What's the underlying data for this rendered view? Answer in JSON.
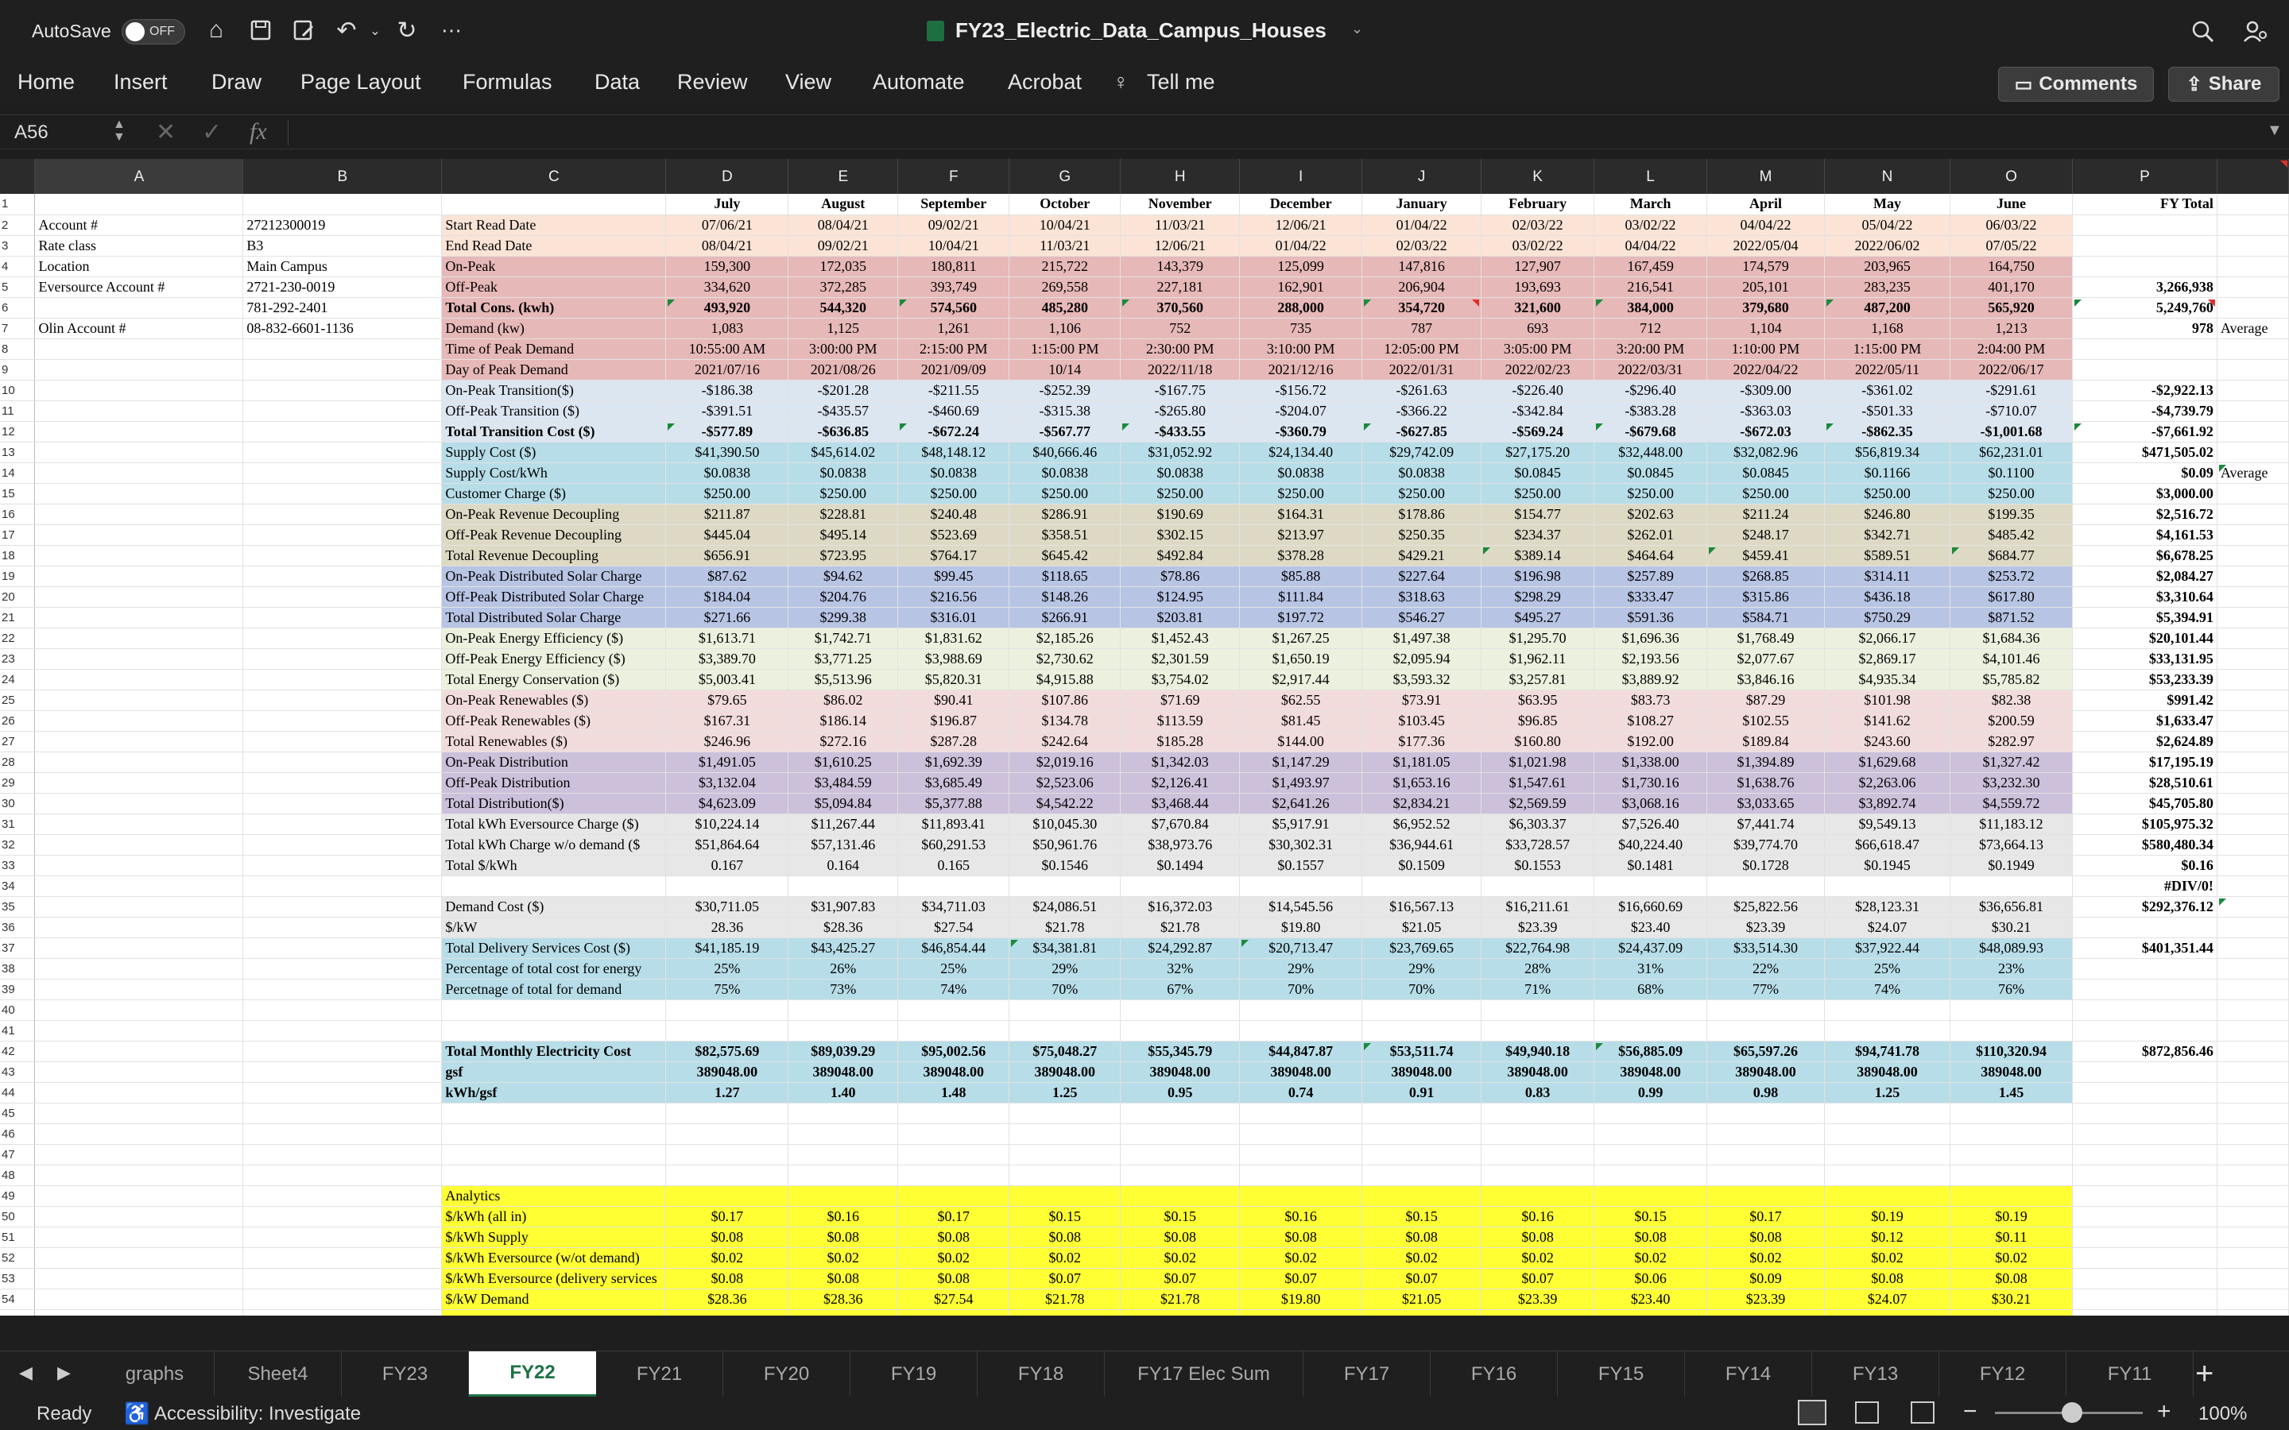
{
  "title": {
    "autosave": "AutoSave",
    "toggle": "OFF",
    "filename": "FY23_Electric_Data_Campus_Houses"
  },
  "ribbon": {
    "tabs": [
      "Home",
      "Insert",
      "Draw",
      "Page Layout",
      "Formulas",
      "Data",
      "Review",
      "View",
      "Automate",
      "Acrobat"
    ],
    "tellme": "Tell me",
    "comments": "Comments",
    "share": "Share"
  },
  "formula": {
    "namebox": "A56",
    "fx": "fx",
    "value": ""
  },
  "columns": [
    "A",
    "B",
    "C",
    "D",
    "E",
    "F",
    "G",
    "H",
    "I",
    "J",
    "K",
    "L",
    "M",
    "N",
    "O",
    "P"
  ],
  "rows": [
    [
      "",
      "",
      "",
      "July",
      "August",
      "September",
      "October",
      "November",
      "December",
      "January",
      "February",
      "March",
      "April",
      "May",
      "June",
      "FY Total",
      ""
    ],
    [
      "Account #",
      "27212300019",
      "Start Read Date",
      "07/06/21",
      "08/04/21",
      "09/02/21",
      "10/04/21",
      "11/03/21",
      "12/06/21",
      "01/04/22",
      "02/03/22",
      "03/02/22",
      "04/04/22",
      "05/04/22",
      "06/03/22",
      "",
      ""
    ],
    [
      "Rate class",
      "B3",
      "End Read Date",
      "08/04/21",
      "09/02/21",
      "10/04/21",
      "11/03/21",
      "12/06/21",
      "01/04/22",
      "02/03/22",
      "03/02/22",
      "04/04/22",
      "2022/05/04",
      "2022/06/02",
      "07/05/22",
      "",
      ""
    ],
    [
      "Location",
      "Main Campus",
      "On-Peak",
      "159,300",
      "172,035",
      "180,811",
      "215,722",
      "143,379",
      "125,099",
      "147,816",
      "127,907",
      "167,459",
      "174,579",
      "203,965",
      "164,750",
      "",
      ""
    ],
    [
      "Eversource Account #",
      "2721-230-0019",
      "Off-Peak",
      "334,620",
      "372,285",
      "393,749",
      "269,558",
      "227,181",
      "162,901",
      "206,904",
      "193,693",
      "216,541",
      "205,101",
      "283,235",
      "401,170",
      "3,266,938",
      ""
    ],
    [
      "",
      "781-292-2401",
      "Total Cons. (kwh)",
      "493,920",
      "544,320",
      "574,560",
      "485,280",
      "370,560",
      "288,000",
      "354,720",
      "321,600",
      "384,000",
      "379,680",
      "487,200",
      "565,920",
      "5,249,760",
      ""
    ],
    [
      "Olin Account #",
      "08-832-6601-1136",
      "Demand (kw)",
      "1,083",
      "1,125",
      "1,261",
      "1,106",
      "752",
      "735",
      "787",
      "693",
      "712",
      "1,104",
      "1,168",
      "1,213",
      "978",
      "Average"
    ],
    [
      "",
      "",
      "Time of Peak Demand",
      "10:55:00 AM",
      "3:00:00 PM",
      "2:15:00 PM",
      "1:15:00 PM",
      "2:30:00 PM",
      "3:10:00 PM",
      "12:05:00 PM",
      "3:05:00 PM",
      "3:20:00 PM",
      "1:10:00 PM",
      "1:15:00 PM",
      "2:04:00 PM",
      "",
      ""
    ],
    [
      "",
      "",
      "Day of Peak Demand",
      "2021/07/16",
      "2021/08/26",
      "2021/09/09",
      "10/14",
      "2022/11/18",
      "2021/12/16",
      "2022/01/31",
      "2022/02/23",
      "2022/03/31",
      "2022/04/22",
      "2022/05/11",
      "2022/06/17",
      "",
      ""
    ],
    [
      "",
      "",
      "On-Peak Transition($)",
      "-$186.38",
      "-$201.28",
      "-$211.55",
      "-$252.39",
      "-$167.75",
      "-$156.72",
      "-$261.63",
      "-$226.40",
      "-$296.40",
      "-$309.00",
      "-$361.02",
      "-$291.61",
      "-$2,922.13",
      ""
    ],
    [
      "",
      "",
      "Off-Peak Transition ($)",
      "-$391.51",
      "-$435.57",
      "-$460.69",
      "-$315.38",
      "-$265.80",
      "-$204.07",
      "-$366.22",
      "-$342.84",
      "-$383.28",
      "-$363.03",
      "-$501.33",
      "-$710.07",
      "-$4,739.79",
      ""
    ],
    [
      "",
      "",
      "Total Transition Cost ($)",
      "-$577.89",
      "-$636.85",
      "-$672.24",
      "-$567.77",
      "-$433.55",
      "-$360.79",
      "-$627.85",
      "-$569.24",
      "-$679.68",
      "-$672.03",
      "-$862.35",
      "-$1,001.68",
      "-$7,661.92",
      ""
    ],
    [
      "",
      "",
      "Supply Cost ($)",
      "$41,390.50",
      "$45,614.02",
      "$48,148.12",
      "$40,666.46",
      "$31,052.92",
      "$24,134.40",
      "$29,742.09",
      "$27,175.20",
      "$32,448.00",
      "$32,082.96",
      "$56,819.34",
      "$62,231.01",
      "$471,505.02",
      ""
    ],
    [
      "",
      "",
      "Supply Cost/kWh",
      "$0.0838",
      "$0.0838",
      "$0.0838",
      "$0.0838",
      "$0.0838",
      "$0.0838",
      "$0.0838",
      "$0.0845",
      "$0.0845",
      "$0.0845",
      "$0.1166",
      "$0.1100",
      "$0.09",
      "Average"
    ],
    [
      "",
      "",
      "Customer Charge ($)",
      "$250.00",
      "$250.00",
      "$250.00",
      "$250.00",
      "$250.00",
      "$250.00",
      "$250.00",
      "$250.00",
      "$250.00",
      "$250.00",
      "$250.00",
      "$250.00",
      "$3,000.00",
      ""
    ],
    [
      "",
      "",
      "On-Peak Revenue Decoupling",
      "$211.87",
      "$228.81",
      "$240.48",
      "$286.91",
      "$190.69",
      "$164.31",
      "$178.86",
      "$154.77",
      "$202.63",
      "$211.24",
      "$246.80",
      "$199.35",
      "$2,516.72",
      ""
    ],
    [
      "",
      "",
      "Off-Peak Revenue Decoupling",
      "$445.04",
      "$495.14",
      "$523.69",
      "$358.51",
      "$302.15",
      "$213.97",
      "$250.35",
      "$234.37",
      "$262.01",
      "$248.17",
      "$342.71",
      "$485.42",
      "$4,161.53",
      ""
    ],
    [
      "",
      "",
      "Total Revenue Decoupling",
      "$656.91",
      "$723.95",
      "$764.17",
      "$645.42",
      "$492.84",
      "$378.28",
      "$429.21",
      "$389.14",
      "$464.64",
      "$459.41",
      "$589.51",
      "$684.77",
      "$6,678.25",
      ""
    ],
    [
      "",
      "",
      "On-Peak Distributed Solar Charge",
      "$87.62",
      "$94.62",
      "$99.45",
      "$118.65",
      "$78.86",
      "$85.88",
      "$227.64",
      "$196.98",
      "$257.89",
      "$268.85",
      "$314.11",
      "$253.72",
      "$2,084.27",
      ""
    ],
    [
      "",
      "",
      "Off-Peak Distributed Solar Charge",
      "$184.04",
      "$204.76",
      "$216.56",
      "$148.26",
      "$124.95",
      "$111.84",
      "$318.63",
      "$298.29",
      "$333.47",
      "$315.86",
      "$436.18",
      "$617.80",
      "$3,310.64",
      ""
    ],
    [
      "",
      "",
      "Total Distributed Solar Charge",
      "$271.66",
      "$299.38",
      "$316.01",
      "$266.91",
      "$203.81",
      "$197.72",
      "$546.27",
      "$495.27",
      "$591.36",
      "$584.71",
      "$750.29",
      "$871.52",
      "$5,394.91",
      ""
    ],
    [
      "",
      "",
      "On-Peak Energy Efficiency ($)",
      "$1,613.71",
      "$1,742.71",
      "$1,831.62",
      "$2,185.26",
      "$1,452.43",
      "$1,267.25",
      "$1,497.38",
      "$1,295.70",
      "$1,696.36",
      "$1,768.49",
      "$2,066.17",
      "$1,684.36",
      "$20,101.44",
      ""
    ],
    [
      "",
      "",
      "Off-Peak Energy Efficiency ($)",
      "$3,389.70",
      "$3,771.25",
      "$3,988.69",
      "$2,730.62",
      "$2,301.59",
      "$1,650.19",
      "$2,095.94",
      "$1,962.11",
      "$2,193.56",
      "$2,077.67",
      "$2,869.17",
      "$4,101.46",
      "$33,131.95",
      ""
    ],
    [
      "",
      "",
      "Total Energy Conservation ($)",
      "$5,003.41",
      "$5,513.96",
      "$5,820.31",
      "$4,915.88",
      "$3,754.02",
      "$2,917.44",
      "$3,593.32",
      "$3,257.81",
      "$3,889.92",
      "$3,846.16",
      "$4,935.34",
      "$5,785.82",
      "$53,233.39",
      ""
    ],
    [
      "",
      "",
      "On-Peak Renewables ($)",
      "$79.65",
      "$86.02",
      "$90.41",
      "$107.86",
      "$71.69",
      "$62.55",
      "$73.91",
      "$63.95",
      "$83.73",
      "$87.29",
      "$101.98",
      "$82.38",
      "$991.42",
      ""
    ],
    [
      "",
      "",
      "Off-Peak Renewables ($)",
      "$167.31",
      "$186.14",
      "$196.87",
      "$134.78",
      "$113.59",
      "$81.45",
      "$103.45",
      "$96.85",
      "$108.27",
      "$102.55",
      "$141.62",
      "$200.59",
      "$1,633.47",
      ""
    ],
    [
      "",
      "",
      "Total Renewables ($)",
      "$246.96",
      "$272.16",
      "$287.28",
      "$242.64",
      "$185.28",
      "$144.00",
      "$177.36",
      "$160.80",
      "$192.00",
      "$189.84",
      "$243.60",
      "$282.97",
      "$2,624.89",
      ""
    ],
    [
      "",
      "",
      "On-Peak Distribution",
      "$1,491.05",
      "$1,610.25",
      "$1,692.39",
      "$2,019.16",
      "$1,342.03",
      "$1,147.29",
      "$1,181.05",
      "$1,021.98",
      "$1,338.00",
      "$1,394.89",
      "$1,629.68",
      "$1,327.42",
      "$17,195.19",
      ""
    ],
    [
      "",
      "",
      "Off-Peak Distribution",
      "$3,132.04",
      "$3,484.59",
      "$3,685.49",
      "$2,523.06",
      "$2,126.41",
      "$1,493.97",
      "$1,653.16",
      "$1,547.61",
      "$1,730.16",
      "$1,638.76",
      "$2,263.06",
      "$3,232.30",
      "$28,510.61",
      ""
    ],
    [
      "",
      "",
      "Total Distribution($)",
      "$4,623.09",
      "$5,094.84",
      "$5,377.88",
      "$4,542.22",
      "$3,468.44",
      "$2,641.26",
      "$2,834.21",
      "$2,569.59",
      "$3,068.16",
      "$3,033.65",
      "$3,892.74",
      "$4,559.72",
      "$45,705.80",
      ""
    ],
    [
      "",
      "",
      "Total kWh Eversource Charge ($)",
      "$10,224.14",
      "$11,267.44",
      "$11,893.41",
      "$10,045.30",
      "$7,670.84",
      "$5,917.91",
      "$6,952.52",
      "$6,303.37",
      "$7,526.40",
      "$7,441.74",
      "$9,549.13",
      "$11,183.12",
      "$105,975.32",
      ""
    ],
    [
      "",
      "",
      "Total kWh Charge w/o demand  ($",
      "$51,864.64",
      "$57,131.46",
      "$60,291.53",
      "$50,961.76",
      "$38,973.76",
      "$30,302.31",
      "$36,944.61",
      "$33,728.57",
      "$40,224.40",
      "$39,774.70",
      "$66,618.47",
      "$73,664.13",
      "$580,480.34",
      ""
    ],
    [
      "",
      "",
      "Total $/kWh",
      "0.167",
      "0.164",
      "0.165",
      "$0.1546",
      "$0.1494",
      "$0.1557",
      "$0.1509",
      "$0.1553",
      "$0.1481",
      "$0.1728",
      "$0.1945",
      "$0.1949",
      "$0.16",
      ""
    ],
    [
      "",
      "",
      "",
      "",
      "",
      "",
      "",
      "",
      "",
      "",
      "",
      "",
      "",
      "",
      "",
      "#DIV/0!",
      ""
    ],
    [
      "",
      "",
      "Demand Cost ($)",
      "$30,711.05",
      "$31,907.83",
      "$34,711.03",
      "$24,086.51",
      "$16,372.03",
      "$14,545.56",
      "$16,567.13",
      "$16,211.61",
      "$16,660.69",
      "$25,822.56",
      "$28,123.31",
      "$36,656.81",
      "$292,376.12",
      ""
    ],
    [
      "",
      "",
      "$/kW",
      "28.36",
      "$28.36",
      "$27.54",
      "$21.78",
      "$21.78",
      "$19.80",
      "$21.05",
      "$23.39",
      "$23.40",
      "$23.39",
      "$24.07",
      "$30.21",
      "",
      ""
    ],
    [
      "",
      "",
      "Total Delivery Services Cost ($)",
      "$41,185.19",
      "$43,425.27",
      "$46,854.44",
      "$34,381.81",
      "$24,292.87",
      "$20,713.47",
      "$23,769.65",
      "$22,764.98",
      "$24,437.09",
      "$33,514.30",
      "$37,922.44",
      "$48,089.93",
      "$401,351.44",
      ""
    ],
    [
      "",
      "",
      "Percentage of total cost for energy",
      "25%",
      "26%",
      "25%",
      "29%",
      "32%",
      "29%",
      "29%",
      "28%",
      "31%",
      "22%",
      "25%",
      "23%",
      "",
      ""
    ],
    [
      "",
      "",
      "Percetnage of total for demand",
      "75%",
      "73%",
      "74%",
      "70%",
      "67%",
      "70%",
      "70%",
      "71%",
      "68%",
      "77%",
      "74%",
      "76%",
      "",
      ""
    ],
    [
      "",
      "",
      "",
      "",
      "",
      "",
      "",
      "",
      "",
      "",
      "",
      "",
      "",
      "",
      "",
      "",
      ""
    ],
    [
      "",
      "",
      "",
      "",
      "",
      "",
      "",
      "",
      "",
      "",
      "",
      "",
      "",
      "",
      "",
      "",
      ""
    ],
    [
      "",
      "",
      "Total Monthly Electricity Cost",
      "$82,575.69",
      "$89,039.29",
      "$95,002.56",
      "$75,048.27",
      "$55,345.79",
      "$44,847.87",
      "$53,511.74",
      "$49,940.18",
      "$56,885.09",
      "$65,597.26",
      "$94,741.78",
      "$110,320.94",
      "$872,856.46",
      ""
    ],
    [
      "",
      "",
      "gsf",
      "389048.00",
      "389048.00",
      "389048.00",
      "389048.00",
      "389048.00",
      "389048.00",
      "389048.00",
      "389048.00",
      "389048.00",
      "389048.00",
      "389048.00",
      "389048.00",
      "",
      ""
    ],
    [
      "",
      "",
      "kWh/gsf",
      "1.27",
      "1.40",
      "1.48",
      "1.25",
      "0.95",
      "0.74",
      "0.91",
      "0.83",
      "0.99",
      "0.98",
      "1.25",
      "1.45",
      "",
      ""
    ],
    [
      "",
      "",
      "",
      "",
      "",
      "",
      "",
      "",
      "",
      "",
      "",
      "",
      "",
      "",
      "",
      "",
      ""
    ],
    [
      "",
      "",
      "",
      "",
      "",
      "",
      "",
      "",
      "",
      "",
      "",
      "",
      "",
      "",
      "",
      "",
      ""
    ],
    [
      "",
      "",
      "",
      "",
      "",
      "",
      "",
      "",
      "",
      "",
      "",
      "",
      "",
      "",
      "",
      "",
      ""
    ],
    [
      "",
      "",
      "",
      "",
      "",
      "",
      "",
      "",
      "",
      "",
      "",
      "",
      "",
      "",
      "",
      "",
      ""
    ],
    [
      "",
      "",
      "Analytics",
      "",
      "",
      "",
      "",
      "",
      "",
      "",
      "",
      "",
      "",
      "",
      "",
      "",
      ""
    ],
    [
      "",
      "",
      "$/kWh (all in)",
      "$0.17",
      "$0.16",
      "$0.17",
      "$0.15",
      "$0.15",
      "$0.16",
      "$0.15",
      "$0.16",
      "$0.15",
      "$0.17",
      "$0.19",
      "$0.19",
      "",
      ""
    ],
    [
      "",
      "",
      "$/kWh Supply",
      "$0.08",
      "$0.08",
      "$0.08",
      "$0.08",
      "$0.08",
      "$0.08",
      "$0.08",
      "$0.08",
      "$0.08",
      "$0.08",
      "$0.12",
      "$0.11",
      "",
      ""
    ],
    [
      "",
      "",
      "$/kWh Eversource (w/ot demand)",
      "$0.02",
      "$0.02",
      "$0.02",
      "$0.02",
      "$0.02",
      "$0.02",
      "$0.02",
      "$0.02",
      "$0.02",
      "$0.02",
      "$0.02",
      "$0.02",
      "",
      ""
    ],
    [
      "",
      "",
      "$/kWh Eversource (delivery services",
      "$0.08",
      "$0.08",
      "$0.08",
      "$0.07",
      "$0.07",
      "$0.07",
      "$0.07",
      "$0.07",
      "$0.06",
      "$0.09",
      "$0.08",
      "$0.08",
      "",
      ""
    ],
    [
      "",
      "",
      "$/kW Demand",
      "$28.36",
      "$28.36",
      "$27.54",
      "$21.78",
      "$21.78",
      "$19.80",
      "$21.05",
      "$23.39",
      "$23.40",
      "$23.39",
      "$24.07",
      "$30.21",
      "",
      ""
    ],
    [
      "",
      "",
      "",
      "",
      "",
      "",
      "",
      "",
      "",
      "",
      "",
      "",
      "",
      "",
      "",
      "",
      ""
    ],
    [
      "",
      "",
      "",
      "",
      "",
      "",
      "",
      "",
      "",
      "",
      "",
      "",
      "",
      "",
      "",
      "",
      ""
    ]
  ],
  "sheets": [
    "graphs",
    "Sheet4",
    "FY23",
    "FY22",
    "FY21",
    "FY20",
    "FY19",
    "FY18",
    "FY17 Elec Sum",
    "FY17",
    "FY16",
    "FY15",
    "FY14",
    "FY13",
    "FY12",
    "FY11"
  ],
  "active_sheet": "FY22",
  "status": {
    "ready": "Ready",
    "accessibility": "Accessibility: Investigate",
    "zoom": "100%"
  }
}
